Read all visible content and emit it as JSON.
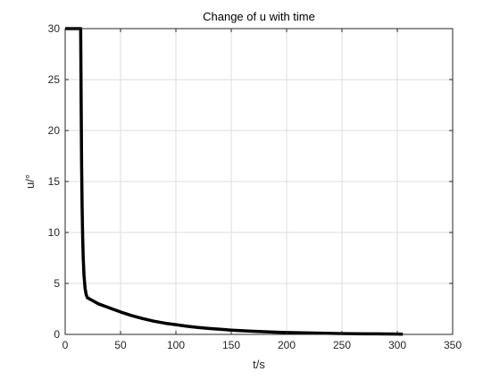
{
  "chart_data": {
    "type": "line",
    "title": "Change of u with time",
    "xlabel": "t/s",
    "ylabel": "u/°",
    "xlim": [
      0,
      350
    ],
    "ylim": [
      0,
      30
    ],
    "xticks": [
      0,
      50,
      100,
      150,
      200,
      250,
      300,
      350
    ],
    "yticks": [
      0,
      5,
      10,
      15,
      20,
      25,
      30
    ],
    "xtick_labels": [
      "0",
      "50",
      "100",
      "150",
      "200",
      "250",
      "300",
      "350"
    ],
    "ytick_labels": [
      "0",
      "5",
      "10",
      "15",
      "20",
      "25",
      "30"
    ],
    "grid": true,
    "legend": false,
    "line_color": "#000000",
    "grid_color": "#dcdcdc",
    "series": [
      {
        "x": [
          0,
          14,
          14.3,
          14.8,
          15.3,
          15.8,
          16.3,
          17,
          18,
          19,
          20,
          25,
          30,
          40,
          50,
          60,
          70,
          80,
          90,
          100,
          110,
          120,
          130,
          140,
          150,
          160,
          170,
          180,
          190,
          200,
          210,
          220,
          230,
          240,
          250,
          260,
          270,
          280,
          290,
          300,
          305
        ],
        "y": [
          30,
          30,
          25,
          17,
          12.5,
          9.5,
          7.5,
          5.8,
          4.5,
          3.9,
          3.6,
          3.3,
          3.0,
          2.6,
          2.2,
          1.85,
          1.55,
          1.3,
          1.1,
          0.95,
          0.8,
          0.68,
          0.58,
          0.5,
          0.42,
          0.36,
          0.31,
          0.26,
          0.22,
          0.19,
          0.16,
          0.14,
          0.12,
          0.1,
          0.08,
          0.07,
          0.06,
          0.05,
          0.04,
          0.03,
          0.02
        ]
      }
    ]
  }
}
